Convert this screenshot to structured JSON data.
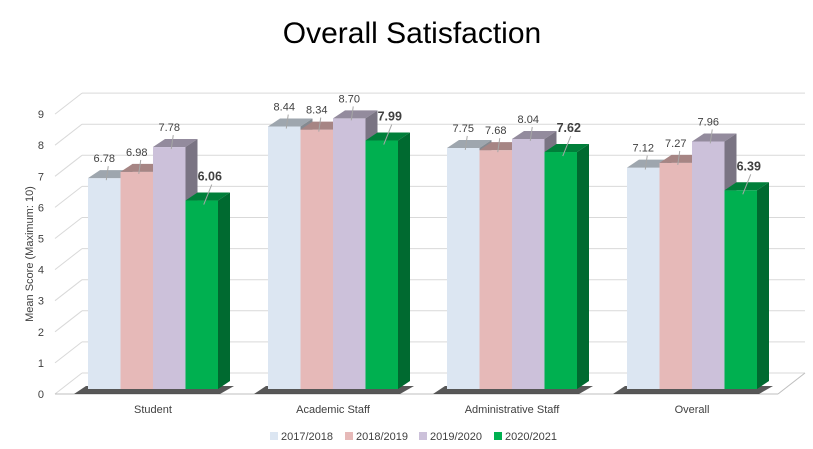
{
  "chart_data": {
    "type": "bar",
    "title": "Overall Satisfaction",
    "xlabel": "",
    "ylabel": "Mean Score (Maximum: 10)",
    "ylim": [
      0,
      9
    ],
    "yticks": [
      "0",
      "1",
      "2",
      "3",
      "4",
      "5",
      "6",
      "7",
      "8",
      "9"
    ],
    "grid": true,
    "legend_position": "bottom",
    "categories": [
      "Student",
      "Academic Staff",
      "Administrative Staff",
      "Overall"
    ],
    "series": [
      {
        "name": "2017/2018",
        "color": "#dce6f2",
        "values": [
          6.78,
          8.44,
          7.75,
          7.12
        ],
        "labels": [
          "6.78",
          "8.44",
          "7.75",
          "7.12"
        ]
      },
      {
        "name": "2018/2019",
        "color": "#e6b9b8",
        "values": [
          6.98,
          8.34,
          7.68,
          7.27
        ],
        "labels": [
          "6.98",
          "8.34",
          "7.68",
          "7.27"
        ]
      },
      {
        "name": "2019/2020",
        "color": "#ccc1da",
        "values": [
          7.78,
          8.7,
          8.04,
          7.96
        ],
        "labels": [
          "7.78",
          "8.70",
          "8.04",
          "7.96"
        ]
      },
      {
        "name": "2020/2021",
        "color": "#00b050",
        "values": [
          6.06,
          7.99,
          7.62,
          6.39
        ],
        "labels": [
          "6.06",
          "7.99",
          "7.62",
          "6.39"
        ],
        "bold_labels": true
      }
    ]
  }
}
